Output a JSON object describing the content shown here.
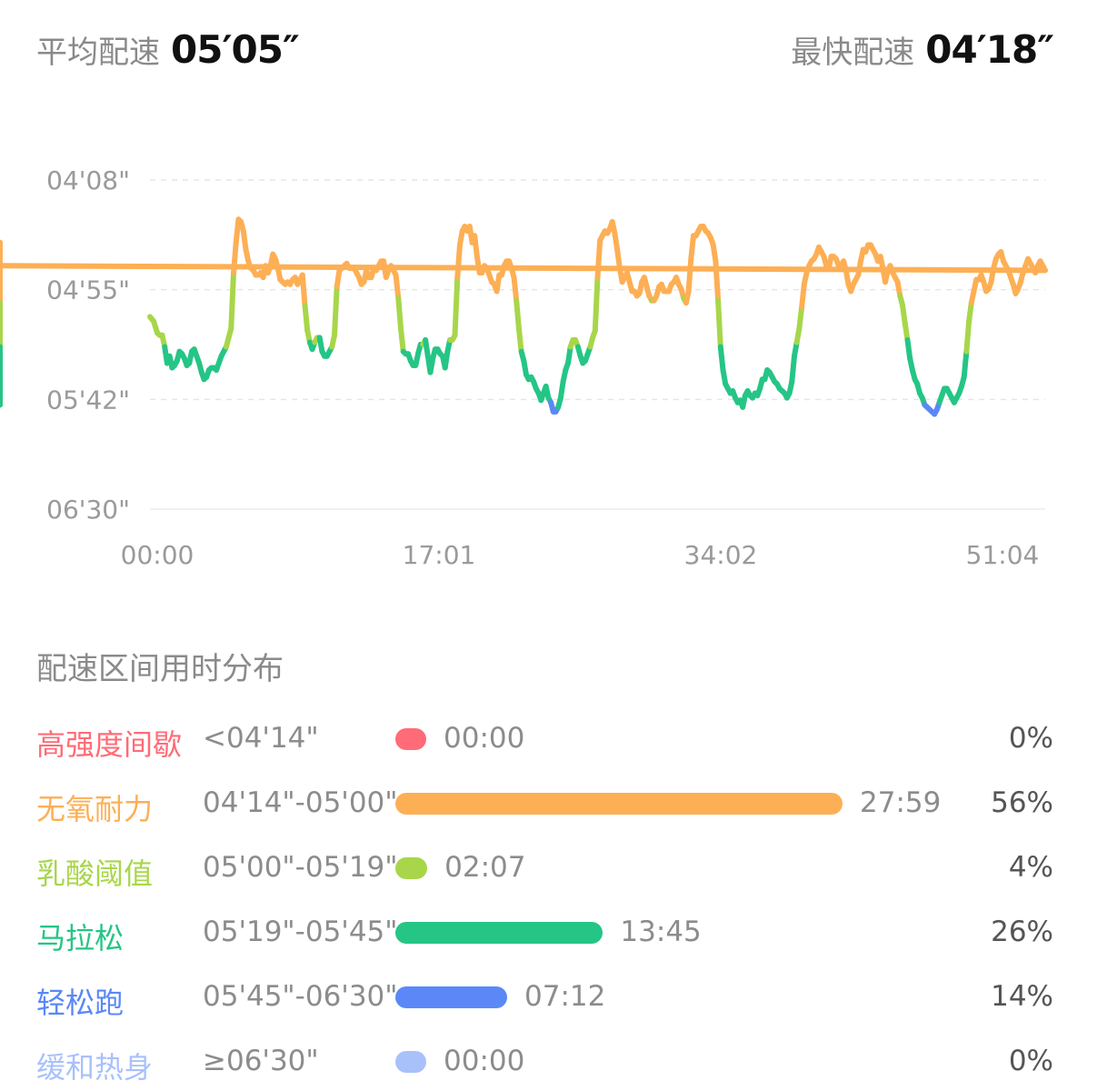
{
  "summary": {
    "avg_label": "平均配速",
    "avg_value": "05′05″",
    "best_label": "最快配速",
    "best_value": "04′18″"
  },
  "chart_data": {
    "type": "line",
    "y_ticks": [
      "04'08\"",
      "04'55\"",
      "05'42\"",
      "06'30\""
    ],
    "x_ticks": [
      "00:00",
      "17:01",
      "34:02",
      "51:04"
    ],
    "y_axis_inverted": true,
    "ylim_seconds": [
      248,
      390
    ],
    "xlim_seconds": [
      0,
      3640
    ],
    "grid": true,
    "series": [
      {
        "x_seconds": [
          0,
          15,
          30,
          40,
          50,
          60,
          70,
          80,
          90,
          100,
          110,
          120,
          130,
          140,
          150,
          160,
          170,
          180,
          190,
          200,
          210,
          220,
          230,
          240,
          250,
          260,
          270,
          280,
          290,
          300,
          310,
          320,
          330,
          340,
          350,
          360,
          370,
          380,
          390,
          400,
          410,
          420,
          430,
          440,
          450,
          460,
          470,
          480,
          490,
          500,
          510,
          520,
          530,
          540,
          550,
          560,
          570,
          580,
          590,
          600,
          610,
          620,
          630,
          640,
          650,
          660,
          670,
          680,
          690,
          700,
          710,
          720,
          730,
          740,
          750,
          760,
          770,
          780,
          790,
          800,
          810,
          820,
          830,
          840,
          850,
          860,
          870,
          880,
          890,
          900,
          910,
          920,
          930,
          940,
          950,
          960,
          970,
          980,
          990,
          1000,
          1010,
          1020,
          1030,
          1040,
          1050,
          1060,
          1070,
          1080,
          1090,
          1100,
          1110,
          1120,
          1130,
          1140,
          1150,
          1160,
          1170,
          1180,
          1190,
          1200,
          1210,
          1220,
          1230,
          1240,
          1250,
          1260,
          1270,
          1280,
          1290,
          1300,
          1310,
          1320,
          1330,
          1340,
          1350,
          1360,
          1370,
          1380,
          1390,
          1400,
          1410,
          1420,
          1430,
          1440,
          1450,
          1460,
          1470,
          1480,
          1490,
          1500,
          1510,
          1520,
          1530,
          1540,
          1550,
          1560,
          1570,
          1580,
          1590,
          1600,
          1610,
          1620,
          1630,
          1640,
          1650,
          1660,
          1670,
          1680,
          1690,
          1700,
          1710,
          1720,
          1730,
          1740,
          1750,
          1760,
          1770,
          1780,
          1790,
          1800,
          1810,
          1820,
          1830,
          1840,
          1850,
          1860,
          1870,
          1880,
          1890,
          1900,
          1910,
          1920,
          1930,
          1940,
          1950,
          1960,
          1970,
          1980,
          1990,
          2000,
          2010,
          2020,
          2030,
          2040,
          2050,
          2060,
          2070,
          2080,
          2090,
          2100,
          2110,
          2120,
          2130,
          2140,
          2150,
          2160,
          2170,
          2180,
          2190,
          2200,
          2210,
          2220,
          2230,
          2240,
          2250,
          2260,
          2270,
          2280,
          2290,
          2300,
          2310,
          2320,
          2330,
          2340,
          2350,
          2360,
          2370,
          2380,
          2390,
          2400,
          2410,
          2420,
          2430,
          2440,
          2450,
          2460,
          2470,
          2480,
          2490,
          2500,
          2510,
          2520,
          2530,
          2540,
          2550,
          2560,
          2570,
          2580,
          2590,
          2600,
          2610,
          2620,
          2630,
          2640,
          2650,
          2660,
          2670,
          2680,
          2690,
          2700,
          2710,
          2720,
          2730,
          2740,
          2750,
          2760,
          2770,
          2780,
          2790,
          2800,
          2810,
          2820,
          2830,
          2840,
          2850,
          2860,
          2870,
          2880,
          2890,
          2900,
          2910,
          2920,
          2930,
          2940,
          2950,
          2960,
          2970,
          2980,
          2990,
          3000,
          3010,
          3020,
          3030,
          3040,
          3050,
          3060,
          3070,
          3080,
          3090,
          3100,
          3110,
          3120,
          3130,
          3140,
          3150,
          3160,
          3170,
          3180,
          3190,
          3200,
          3210,
          3220,
          3230,
          3240,
          3250,
          3260,
          3270,
          3280,
          3290,
          3300,
          3310,
          3320,
          3330,
          3340,
          3350,
          3360,
          3370,
          3380,
          3390,
          3400,
          3410,
          3420,
          3430,
          3440,
          3450,
          3460,
          3470,
          3480,
          3490,
          3500,
          3510,
          3520,
          3530,
          3540,
          3550,
          3560,
          3570,
          3580,
          3590,
          3600,
          3610,
          3620,
          3630,
          3640
        ],
        "pace_seconds": [
          307,
          309,
          314,
          315,
          315,
          320,
          327,
          324,
          329,
          328,
          326,
          322,
          323,
          325,
          328,
          327,
          322,
          321,
          324,
          327,
          331,
          334,
          333,
          330,
          329,
          329,
          330,
          327,
          324,
          322,
          320,
          316,
          312,
          288,
          275,
          265,
          266,
          270,
          278,
          283,
          286,
          287,
          289,
          289,
          288,
          290,
          285,
          288,
          285,
          280,
          282,
          286,
          291,
          292,
          293,
          292,
          293,
          291,
          290,
          293,
          291,
          289,
          302,
          313,
          318,
          321,
          318,
          316,
          316,
          322,
          324,
          324,
          322,
          320,
          315,
          294,
          287,
          286,
          285,
          284,
          286,
          286,
          286,
          288,
          290,
          293,
          292,
          287,
          290,
          290,
          286,
          287,
          285,
          283,
          283,
          290,
          287,
          285,
          287,
          289,
          299,
          312,
          322,
          323,
          323,
          326,
          328,
          328,
          323,
          319,
          319,
          317,
          324,
          331,
          325,
          321,
          321,
          323,
          324,
          329,
          322,
          317,
          317,
          315,
          290,
          276,
          270,
          268,
          270,
          268,
          275,
          272,
          281,
          288,
          288,
          285,
          286,
          289,
          292,
          293,
          296,
          289,
          289,
          285,
          283,
          283,
          286,
          290,
          300,
          312,
          322,
          326,
          332,
          334,
          333,
          335,
          338,
          340,
          343,
          340,
          337,
          342,
          344,
          348,
          348,
          346,
          342,
          335,
          330,
          327,
          320,
          317,
          317,
          320,
          324,
          327,
          326,
          323,
          320,
          316,
          313,
          290,
          274,
          272,
          270,
          271,
          269,
          266,
          271,
          278,
          286,
          292,
          290,
          288,
          292,
          296,
          296,
          298,
          297,
          292,
          290,
          294,
          298,
          300,
          300,
          298,
          294,
          293,
          296,
          296,
          296,
          293,
          292,
          290,
          293,
          295,
          299,
          301,
          296,
          282,
          272,
          272,
          270,
          268,
          268,
          270,
          271,
          273,
          276,
          283,
          300,
          320,
          330,
          336,
          338,
          340,
          339,
          342,
          344,
          343,
          346,
          341,
          339,
          341,
          342,
          340,
          341,
          338,
          334,
          334,
          330,
          331,
          333,
          335,
          336,
          338,
          339,
          340,
          342,
          340,
          335,
          324,
          318,
          312,
          303,
          293,
          288,
          285,
          283,
          282,
          280,
          277,
          279,
          281,
          285,
          286,
          281,
          281,
          282,
          285,
          285,
          283,
          287,
          293,
          296,
          293,
          291,
          289,
          283,
          278,
          279,
          276,
          276,
          278,
          280,
          283,
          281,
          286,
          292,
          287,
          285,
          288,
          290,
          292,
          298,
          302,
          310,
          317,
          325,
          330,
          334,
          336,
          340,
          342,
          345,
          346,
          347,
          348,
          349,
          347,
          344,
          341,
          338,
          338,
          340,
          342,
          344,
          342,
          340,
          337,
          333,
          322,
          309,
          301,
          296,
          291,
          291,
          289,
          292,
          296,
          295,
          292,
          286,
          282,
          280,
          279,
          283,
          285,
          287,
          290,
          293,
          297,
          295,
          292,
          288,
          285,
          282,
          284,
          286,
          288,
          285,
          283,
          285,
          287,
          285,
          283,
          281,
          279,
          277,
          275,
          277,
          280,
          286,
          290,
          293,
          293,
          289,
          285,
          282,
          280,
          281,
          283,
          285,
          287,
          287,
          288,
          286,
          285,
          283,
          290,
          296,
          301,
          305,
          309,
          312,
          316,
          320,
          323,
          325,
          326,
          328,
          329,
          331,
          333,
          336,
          340,
          342,
          344,
          343,
          341,
          338,
          335,
          333,
          330,
          328,
          326,
          324,
          326,
          328,
          330,
          328,
          326,
          328,
          329,
          332,
          334,
          335,
          337,
          338,
          340,
          342,
          343,
          344,
          345,
          343,
          341,
          339,
          341,
          343,
          345
        ]
      }
    ]
  },
  "zones": {
    "title": "配速区间用时分布",
    "rows": [
      {
        "name": "高强度间歇",
        "range": "<04'14\"",
        "time": "00:00",
        "pct": "0%",
        "fraction": 0.0,
        "color": "#ff6b76"
      },
      {
        "name": "无氧耐力",
        "range": "04'14\"-05'00\"",
        "time": "27:59",
        "pct": "56%",
        "fraction": 0.56,
        "color": "#fdaf55"
      },
      {
        "name": "乳酸阈值",
        "range": "05'00\"-05'19\"",
        "time": "02:07",
        "pct": "4%",
        "fraction": 0.04,
        "color": "#a8d64a"
      },
      {
        "name": "马拉松",
        "range": "05'19\"-05'45\"",
        "time": "13:45",
        "pct": "26%",
        "fraction": 0.26,
        "color": "#25c586"
      },
      {
        "name": "轻松跑",
        "range": "05'45\"-06'30\"",
        "time": "07:12",
        "pct": "14%",
        "fraction": 0.14,
        "color": "#5a88f7"
      },
      {
        "name": "缓和热身",
        "range": "≥06'30\"",
        "time": "00:00",
        "pct": "0%",
        "fraction": 0.0,
        "color": "#a9c1fb"
      }
    ]
  }
}
